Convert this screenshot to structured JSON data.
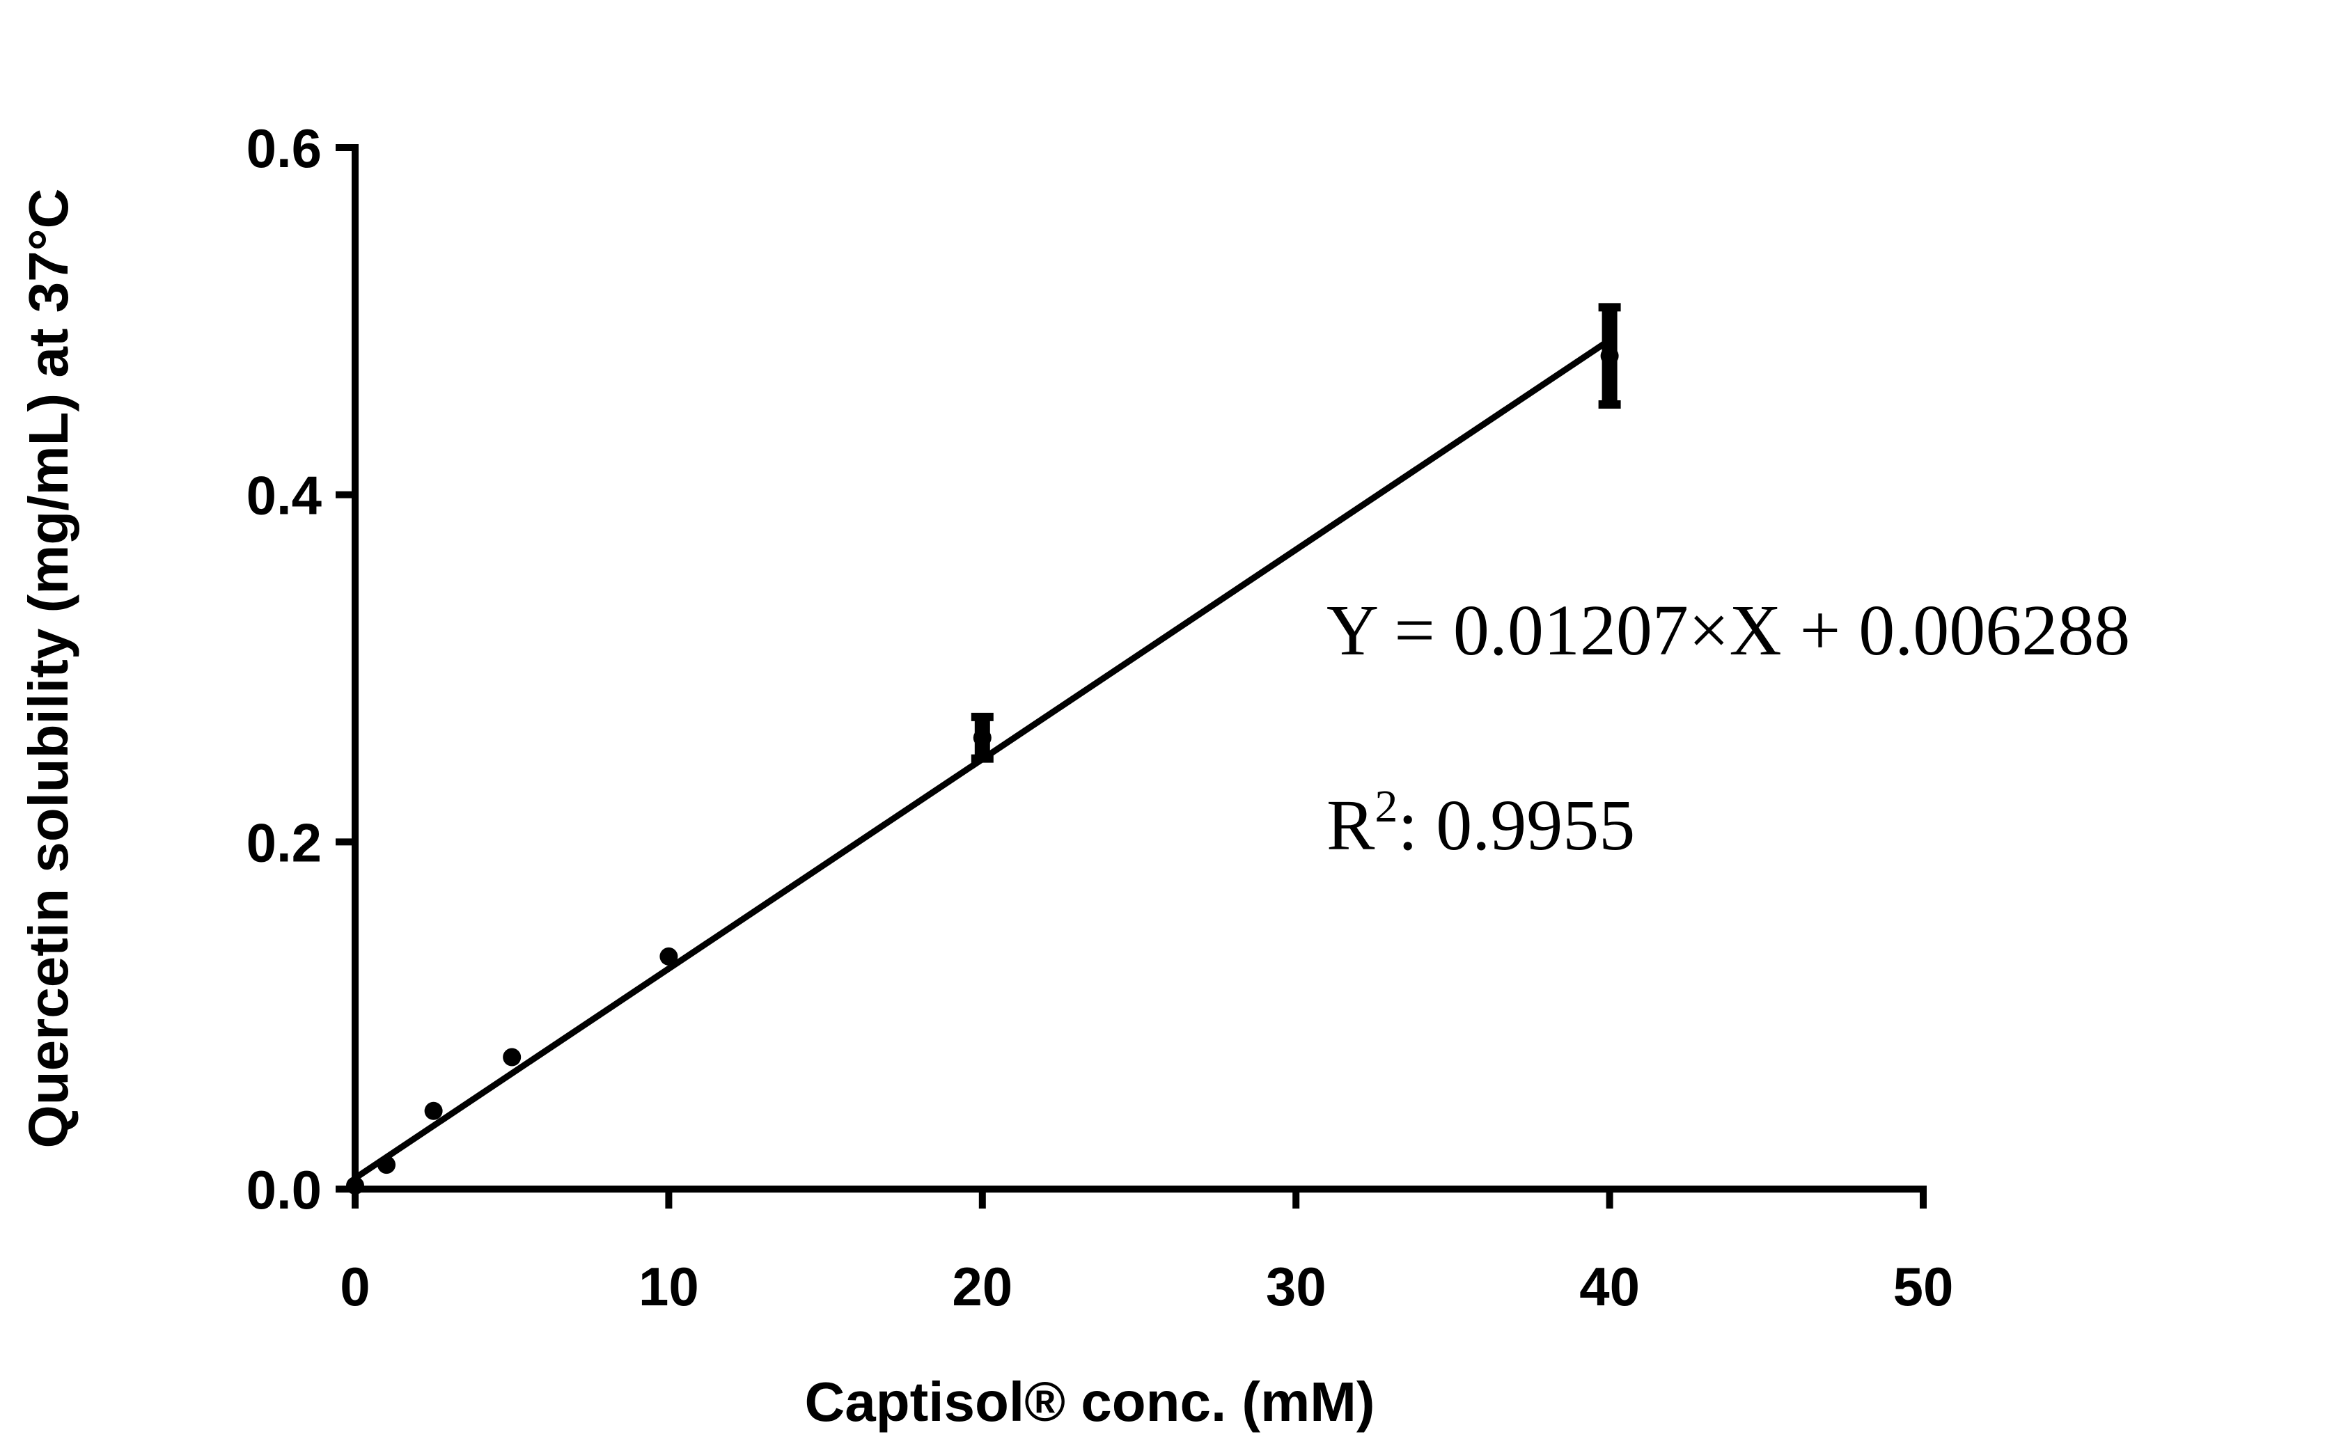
{
  "chart_data": {
    "type": "scatter",
    "title": "",
    "xlabel": "Captisol® conc. (mM)",
    "ylabel": "Quercetin solubility (mg/mL) at 37°C",
    "xlim": [
      0,
      50
    ],
    "ylim": [
      0,
      0.6
    ],
    "x_ticks": [
      "0",
      "10",
      "20",
      "30",
      "40",
      "50"
    ],
    "y_ticks": [
      "0.0",
      "0.2",
      "0.4",
      "0.6"
    ],
    "grid": false,
    "legend": "none",
    "series": [
      {
        "x": [
          0,
          1,
          2.5,
          5,
          10,
          20,
          40
        ],
        "y": [
          0.002,
          0.014,
          0.045,
          0.076,
          0.134,
          0.26,
          0.48
        ],
        "y_error": [
          0,
          0,
          0,
          0,
          0,
          0.012,
          0.028
        ]
      }
    ],
    "fit_line": {
      "slope": 0.01207,
      "intercept": 0.006288,
      "x_range": [
        0,
        40
      ]
    },
    "annotations": {
      "equation": "Y = 0.01207×X + 0.006288",
      "r2_label": "R",
      "r2_sup": "2",
      "r2_value": ": 0.9955"
    },
    "colors": {
      "marks": "#000000",
      "background": "#ffffff"
    }
  }
}
